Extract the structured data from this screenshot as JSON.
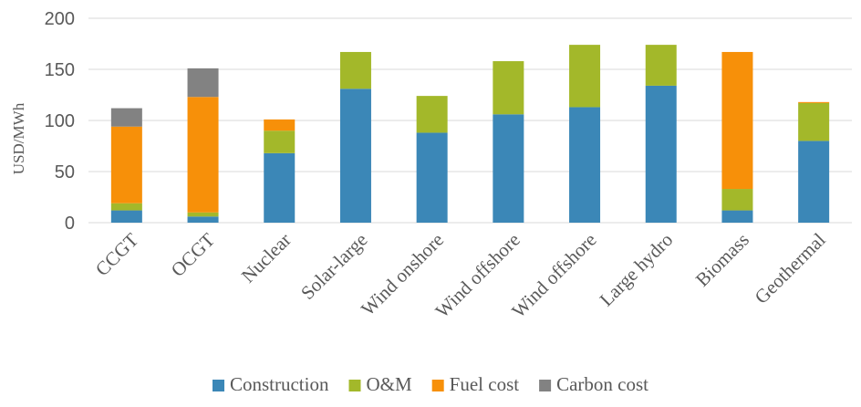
{
  "chart_data": {
    "type": "bar",
    "stacked": true,
    "title": "",
    "xlabel": "",
    "ylabel": "USD/MWh",
    "ylim": [
      0,
      200
    ],
    "yticks": [
      0,
      50,
      100,
      150,
      200
    ],
    "grid": true,
    "legend_position": "bottom",
    "categories": [
      "CCGT",
      "OCGT",
      "Nuclear",
      "Solar-large",
      "Wind onshore",
      "Wind offshore",
      "Wind offshore",
      "Large hydro",
      "Biomass",
      "Geothermal"
    ],
    "series": [
      {
        "name": "Construction",
        "color": "#3b87b7",
        "values": [
          12,
          6,
          68,
          131,
          88,
          106,
          113,
          134,
          12,
          80
        ]
      },
      {
        "name": "O&M",
        "color": "#a3b82a",
        "values": [
          7,
          4,
          22,
          36,
          36,
          52,
          61,
          40,
          21,
          37
        ]
      },
      {
        "name": "Fuel cost",
        "color": "#f79009",
        "values": [
          75,
          113,
          11,
          0,
          0,
          0,
          0,
          0,
          134,
          1
        ]
      },
      {
        "name": "Carbon cost",
        "color": "#828282",
        "values": [
          18,
          28,
          0,
          0,
          0,
          0,
          0,
          0,
          0,
          0
        ]
      }
    ]
  }
}
